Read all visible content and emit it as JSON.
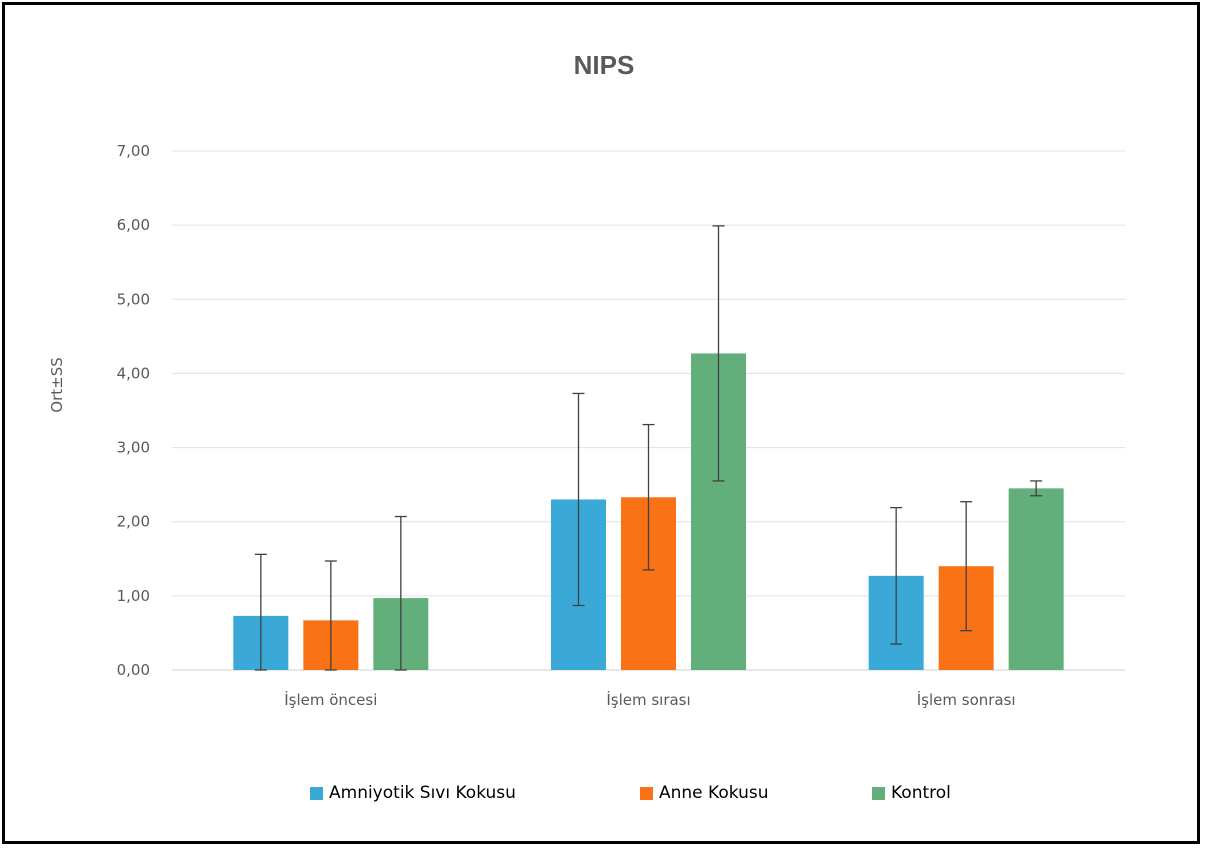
{
  "chart_data": {
    "type": "bar",
    "title": "NIPS",
    "xlabel": "",
    "ylabel": "Ort±SS",
    "ylim": [
      0,
      7
    ],
    "yticks": [
      "0,00",
      "1,00",
      "2,00",
      "3,00",
      "4,00",
      "5,00",
      "6,00",
      "7,00"
    ],
    "grid": true,
    "legend_position": "bottom",
    "categories": [
      "İşlem öncesi",
      "İşlem sırası",
      "İşlem sonrası"
    ],
    "series": [
      {
        "name": "Amniyotik Sıvı Kokusu",
        "color": "#3BA9D8",
        "values": [
          0.73,
          2.3,
          1.27
        ],
        "error": [
          0.83,
          1.43,
          0.92
        ]
      },
      {
        "name": "Anne Kokusu",
        "color": "#F97316",
        "values": [
          0.67,
          2.33,
          1.4
        ],
        "error": [
          0.8,
          0.98,
          0.87
        ]
      },
      {
        "name": "Kontrol",
        "color": "#63AF7C",
        "values": [
          0.97,
          4.27,
          2.45
        ],
        "error": [
          1.1,
          1.72,
          0.1
        ]
      }
    ]
  }
}
